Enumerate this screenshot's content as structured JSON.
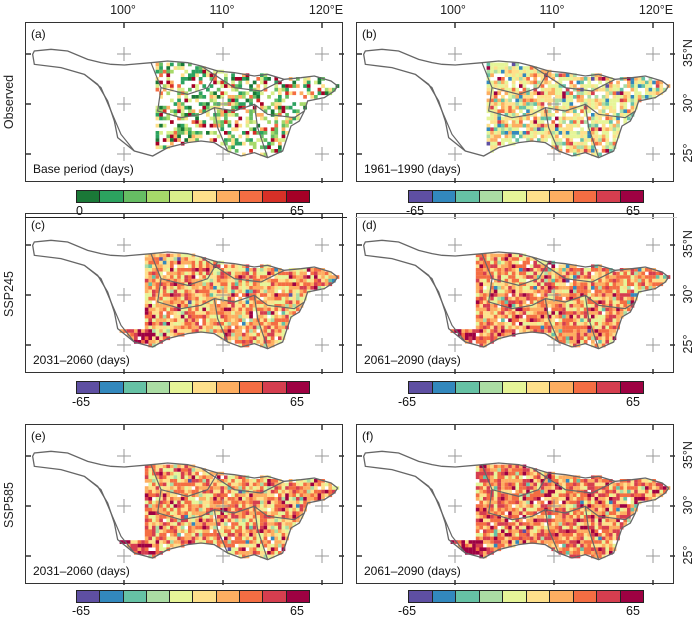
{
  "axes": {
    "lon_labels": [
      "100°",
      "110°",
      "120°E"
    ],
    "lat_labels": [
      "35°N",
      "30°",
      "25°"
    ]
  },
  "rows": [
    {
      "label": "Observed"
    },
    {
      "label": "SSP245"
    },
    {
      "label": "SSP585"
    }
  ],
  "panels": [
    {
      "id": "a",
      "label": "(a)",
      "caption": "Base period (days)",
      "scale": "sequential"
    },
    {
      "id": "b",
      "label": "(b)",
      "caption": "1961–1990 (days)",
      "scale": "diverging"
    },
    {
      "id": "c",
      "label": "(c)",
      "caption": "2031–2060 (days)",
      "scale": "diverging"
    },
    {
      "id": "d",
      "label": "(d)",
      "caption": "2061–2090 (days)",
      "scale": "diverging"
    },
    {
      "id": "e",
      "label": "(e)",
      "caption": "2031–2060 (days)",
      "scale": "diverging"
    },
    {
      "id": "f",
      "label": "(f)",
      "caption": "2061–2090 (days)",
      "scale": "diverging"
    }
  ],
  "colorbars": {
    "sequential": {
      "min": "0",
      "max": "65",
      "colors": [
        "#1a7837",
        "#2ca25f",
        "#66bd63",
        "#a6d96a",
        "#d9ef8b",
        "#fee08b",
        "#fdae61",
        "#f46d43",
        "#d73027",
        "#a50026"
      ]
    },
    "diverging": {
      "min": "-65",
      "max": "65",
      "colors": [
        "#5e4fa2",
        "#3288bd",
        "#66c2a5",
        "#abdda4",
        "#e6f598",
        "#fee08b",
        "#fdae61",
        "#f46d43",
        "#d53e4f",
        "#9e0142"
      ]
    }
  },
  "colors": {
    "outline": "#666666",
    "cross": "#999999"
  }
}
